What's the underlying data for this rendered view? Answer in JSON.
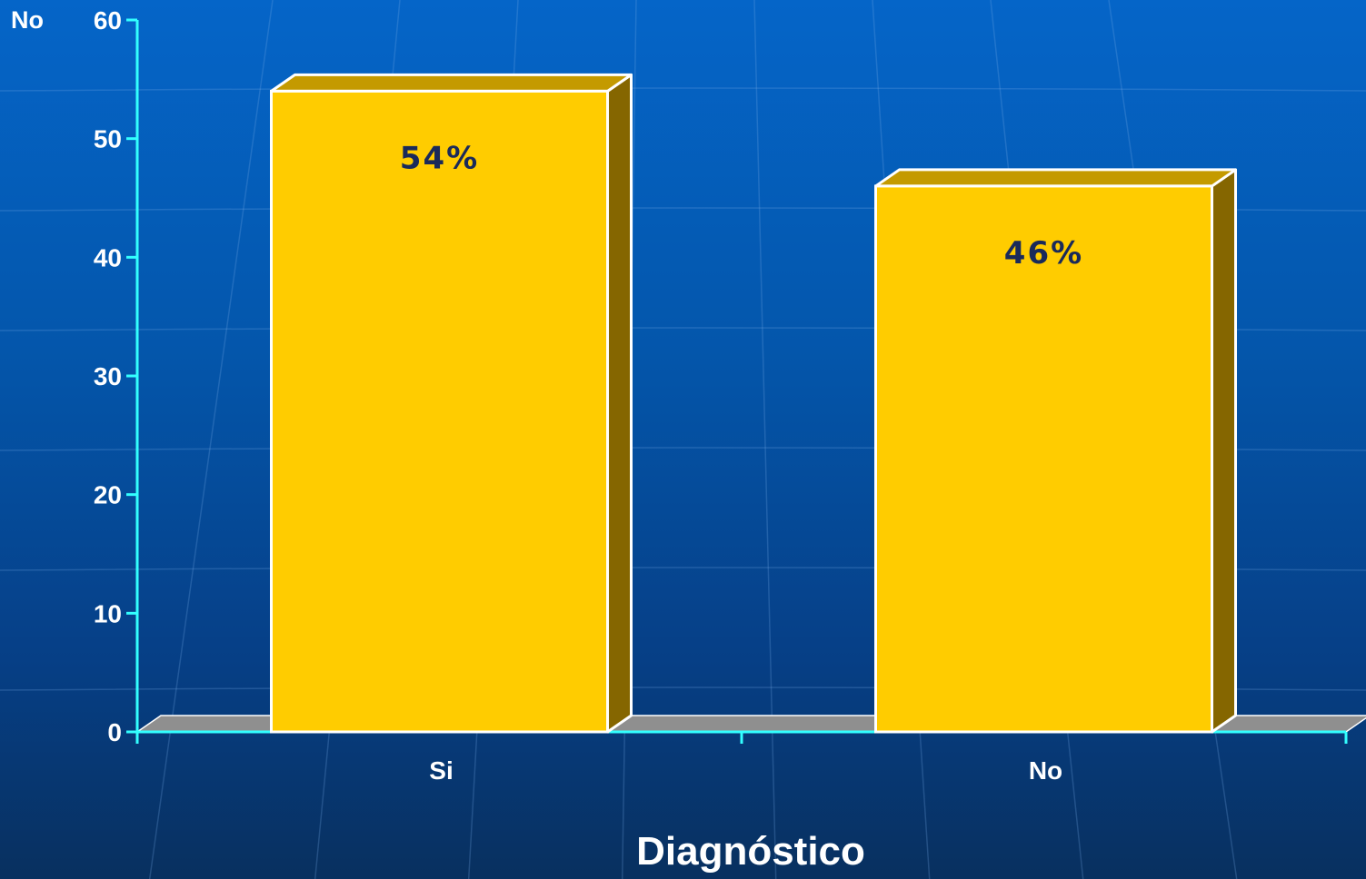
{
  "chart_data": {
    "type": "bar",
    "categories": [
      "Si",
      "No"
    ],
    "values": [
      54,
      46
    ],
    "data_labels": [
      "54%",
      "46%"
    ],
    "xlabel": "Diagnóstico",
    "ylabel": "No",
    "ylim": [
      0,
      60
    ],
    "yticks": [
      0,
      10,
      20,
      30,
      40,
      50,
      60
    ],
    "grid": false,
    "legend": "none",
    "style": "3d",
    "colors": {
      "bar_front": "#ffcc00",
      "bar_top": "#c49a00",
      "bar_side": "#856600",
      "axis": "#33ffff",
      "floor": "#8f8f8f"
    }
  }
}
